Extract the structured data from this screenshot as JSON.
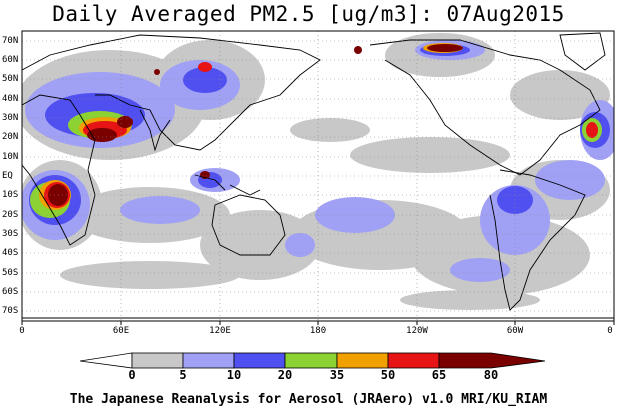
{
  "title": "Daily Averaged PM2.5 [ug/m3]: 07Aug2015",
  "credit": "The Japanese Reanalysis for Aerosol (JRAero) v1.0 MRI/KU_RIAM",
  "lat_labels": [
    "70N",
    "60N",
    "50N",
    "40N",
    "30N",
    "20N",
    "10N",
    "EQ",
    "10S",
    "20S",
    "30S",
    "40S",
    "50S",
    "60S",
    "70S"
  ],
  "lon_labels": [
    "0",
    "60E",
    "120E",
    "180",
    "120W",
    "60W",
    "0"
  ],
  "colorbar": {
    "labels": [
      "0",
      "5",
      "10",
      "20",
      "35",
      "50",
      "65",
      "80"
    ],
    "colors": [
      "#ffffff",
      "#c8c8c8",
      "#a0a0f5",
      "#5050f0",
      "#8cd232",
      "#f0a000",
      "#e61414",
      "#7a0000"
    ]
  }
}
